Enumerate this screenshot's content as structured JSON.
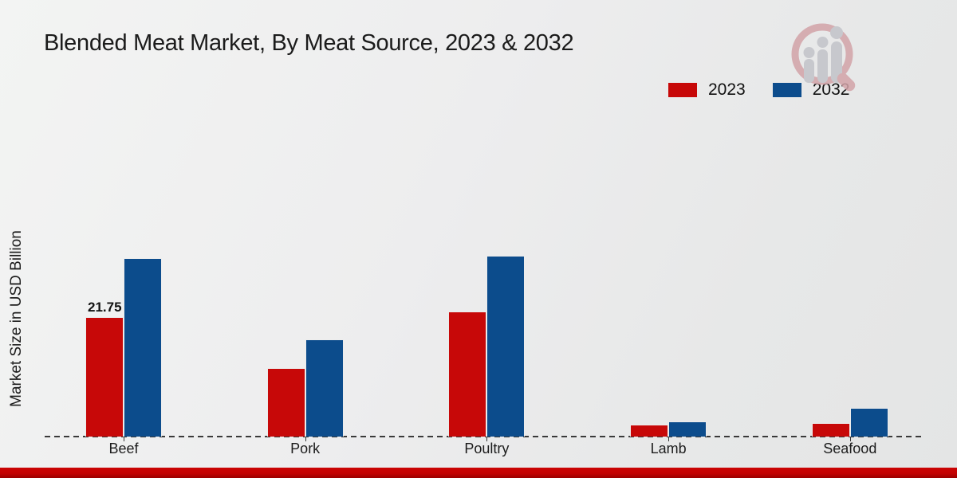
{
  "title": "Blended Meat Market, By Meat Source, 2023 & 2032",
  "ylabel": "Market Size in USD Billion",
  "colors": {
    "series_2023": "#c70808",
    "series_2032": "#0c4c8c",
    "footer_strip": "#c30202",
    "background": "#ebecec",
    "baseline": "#3a3a3a",
    "text": "#1b1b1b"
  },
  "legend": {
    "position": "top-right",
    "items": [
      {
        "label": "2023",
        "color": "#c70808"
      },
      {
        "label": "2032",
        "color": "#0c4c8c"
      }
    ]
  },
  "watermark_icon": "magnifier-bar-chart-logo",
  "chart_data": {
    "type": "bar",
    "categories": [
      "Beef",
      "Pork",
      "Poultry",
      "Lamb",
      "Seafood"
    ],
    "series": [
      {
        "name": "2023",
        "color": "#c70808",
        "values": [
          21.75,
          12.4,
          22.8,
          2.2,
          2.5
        ]
      },
      {
        "name": "2032",
        "color": "#0c4c8c",
        "values": [
          32.5,
          17.7,
          32.9,
          2.8,
          5.2
        ]
      }
    ],
    "title": "Blended Meat Market, By Meat Source, 2023 & 2032",
    "xlabel": "",
    "ylabel": "Market Size in USD Billion",
    "ylim": [
      0,
      36
    ],
    "grid": false,
    "legend_position": "top-right",
    "baseline_style": "dashed",
    "data_labels": [
      {
        "category": "Beef",
        "series": "2023",
        "text": "21.75"
      }
    ]
  }
}
